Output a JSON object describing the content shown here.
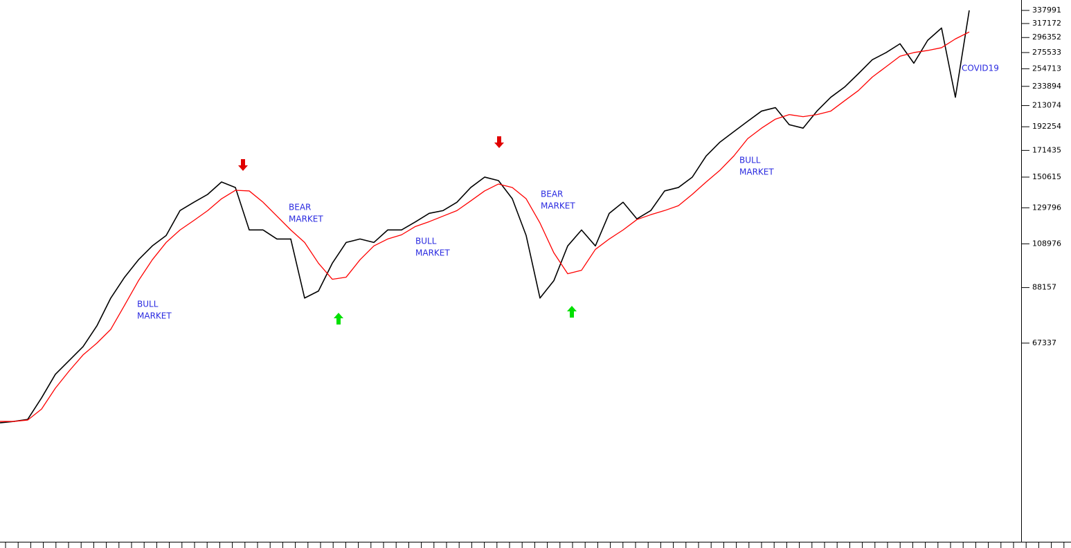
{
  "chart_data": {
    "type": "line",
    "log_scale": true,
    "ylim": [
      25698,
      355500
    ],
    "yticks": [
      67337,
      88157,
      108976,
      129796,
      150615,
      171435,
      192254,
      213074,
      233894,
      254713,
      275533,
      296352,
      317172,
      337991
    ],
    "series": [
      {
        "color": "#000000",
        "values": [
          45760,
          46060,
          46520,
          51630,
          57890,
          61910,
          66210,
          73240,
          83780,
          92710,
          100870,
          107880,
          113460,
          128040,
          133330,
          138530,
          147100,
          143230,
          116560,
          116560,
          111570,
          111570,
          83780,
          86680,
          99190,
          109710,
          111570,
          109710,
          116560,
          116560,
          121220,
          126340,
          128040,
          133330,
          143230,
          150615,
          148100,
          135600,
          113460,
          83780,
          91150,
          107880,
          116560,
          107880,
          126340,
          133330,
          123000,
          128040,
          140850,
          143230,
          150615,
          166890,
          178480,
          187780,
          197480,
          207420,
          210950,
          194200,
          190970,
          207420,
          221840,
          233110,
          248790,
          266090,
          275533,
          287520,
          261650,
          292400,
          310300,
          221840,
          337991
        ]
      },
      {
        "color": "#ff0000",
        "values": [
          46060,
          46060,
          46370,
          48900,
          54120,
          58860,
          63600,
          67337,
          71990,
          80930,
          91150,
          100870,
          109710,
          116560,
          122050,
          128040,
          135600,
          141290,
          140850,
          133330,
          124660,
          116560,
          109710,
          99190,
          91780,
          92710,
          100870,
          107880,
          111570,
          113850,
          118540,
          121360,
          124670,
          128040,
          134230,
          140850,
          145640,
          143230,
          135600,
          120540,
          104320,
          94280,
          95880,
          106080,
          111570,
          116560,
          122590,
          125510,
          128060,
          131110,
          138530,
          147100,
          155760,
          166890,
          181510,
          190970,
          199490,
          203960,
          201920,
          203960,
          207420,
          218150,
          229220,
          244640,
          257290,
          270700,
          275533,
          278320,
          282090,
          294370,
          304430
        ]
      }
    ],
    "annotations": [
      {
        "lines": [
          "BULL",
          "MARKET"
        ]
      },
      {
        "lines": [
          "BEAR",
          "MARKET"
        ]
      },
      {
        "lines": [
          "BULL",
          "MARKET"
        ]
      },
      {
        "lines": [
          "BEAR",
          "MARKET"
        ]
      },
      {
        "lines": [
          "BULL",
          "MARKET"
        ]
      },
      {
        "lines": [
          "COVID19"
        ]
      }
    ]
  }
}
